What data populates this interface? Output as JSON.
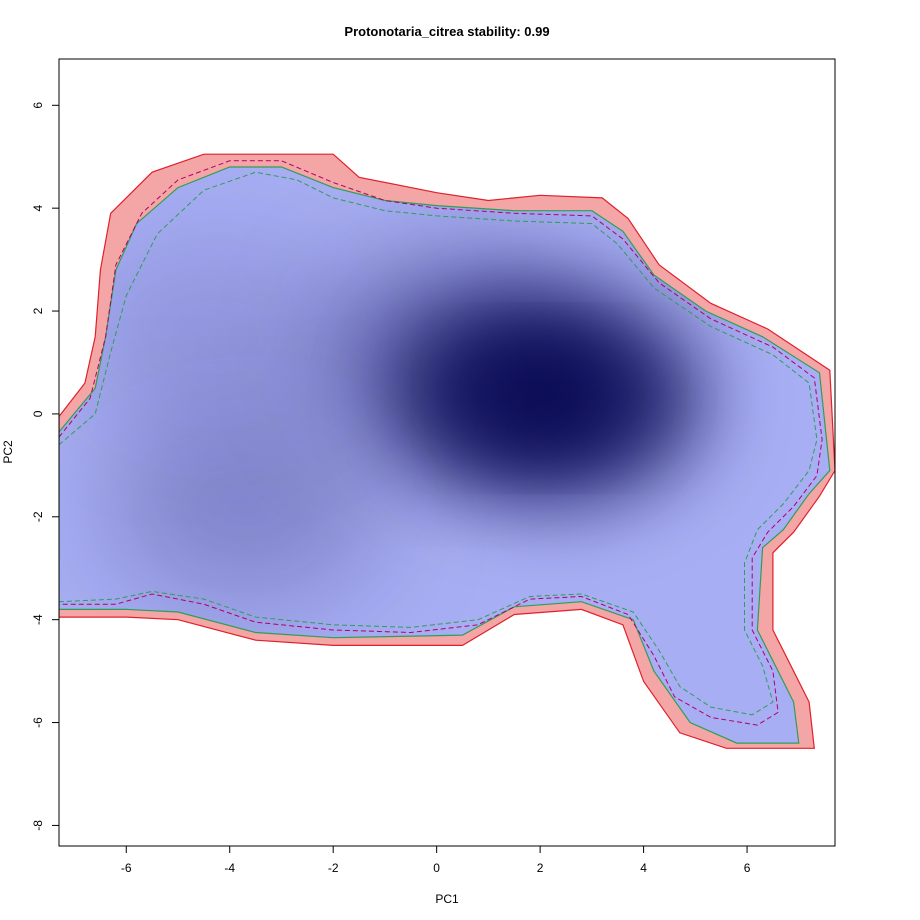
{
  "chart_data": {
    "type": "heatmap",
    "title": "Protonotaria_citrea stability: 0.99",
    "xlabel": "PC1",
    "ylabel": "PC2",
    "xlim": [
      -7.3,
      7.7
    ],
    "ylim": [
      -8.4,
      6.9
    ],
    "x_ticks": [
      -6,
      -4,
      -2,
      0,
      2,
      4,
      6
    ],
    "y_ticks": [
      -8,
      -6,
      -4,
      -2,
      0,
      2,
      4,
      6
    ],
    "x_tick_labels": [
      "-6",
      "-4",
      "-2",
      "0",
      "2",
      "4",
      "6"
    ],
    "y_tick_labels": [
      "-8",
      "-6",
      "-4",
      "-2",
      "0",
      "2",
      "4",
      "6"
    ],
    "density_peaks": [
      {
        "x": 2.2,
        "y": 0.3,
        "intensity": 1.0
      },
      {
        "x": 0.6,
        "y": 1.1,
        "intensity": 0.6
      },
      {
        "x": -3.7,
        "y": -1.8,
        "intensity": 0.32
      },
      {
        "x": -4.2,
        "y": 1.5,
        "intensity": 0.2
      }
    ],
    "outer_boundary": [
      [
        -7.3,
        -0.05
      ],
      [
        -6.8,
        0.6
      ],
      [
        -6.6,
        1.5
      ],
      [
        -6.5,
        2.8
      ],
      [
        -6.3,
        3.9
      ],
      [
        -5.5,
        4.7
      ],
      [
        -4.5,
        5.05
      ],
      [
        -2.0,
        5.05
      ],
      [
        -1.5,
        4.6
      ],
      [
        0.0,
        4.3
      ],
      [
        1.0,
        4.15
      ],
      [
        2.0,
        4.25
      ],
      [
        3.2,
        4.2
      ],
      [
        3.7,
        3.8
      ],
      [
        4.3,
        2.9
      ],
      [
        5.3,
        2.15
      ],
      [
        6.4,
        1.65
      ],
      [
        7.6,
        0.85
      ],
      [
        7.7,
        -1.1
      ],
      [
        7.4,
        -1.6
      ],
      [
        6.9,
        -2.3
      ],
      [
        6.5,
        -2.7
      ],
      [
        6.5,
        -4.2
      ],
      [
        6.8,
        -4.8
      ],
      [
        7.2,
        -5.6
      ],
      [
        7.3,
        -6.5
      ],
      [
        5.6,
        -6.5
      ],
      [
        4.7,
        -6.2
      ],
      [
        4.0,
        -5.2
      ],
      [
        3.6,
        -4.1
      ],
      [
        2.8,
        -3.8
      ],
      [
        1.5,
        -3.9
      ],
      [
        0.5,
        -4.5
      ],
      [
        -2.0,
        -4.5
      ],
      [
        -3.5,
        -4.4
      ],
      [
        -5.0,
        -4.0
      ],
      [
        -6.0,
        -3.95
      ],
      [
        -7.3,
        -3.95
      ]
    ],
    "inner_boundary": [
      [
        -7.3,
        -0.35
      ],
      [
        -6.6,
        0.5
      ],
      [
        -6.4,
        1.5
      ],
      [
        -6.2,
        2.8
      ],
      [
        -5.8,
        3.7
      ],
      [
        -5.0,
        4.4
      ],
      [
        -4.0,
        4.8
      ],
      [
        -3.0,
        4.8
      ],
      [
        -2.0,
        4.4
      ],
      [
        -1.0,
        4.15
      ],
      [
        0.0,
        4.05
      ],
      [
        1.5,
        3.95
      ],
      [
        3.0,
        3.95
      ],
      [
        3.6,
        3.55
      ],
      [
        4.2,
        2.7
      ],
      [
        5.2,
        2.0
      ],
      [
        6.3,
        1.5
      ],
      [
        7.4,
        0.8
      ],
      [
        7.6,
        -1.1
      ],
      [
        7.2,
        -1.55
      ],
      [
        6.7,
        -2.25
      ],
      [
        6.3,
        -2.6
      ],
      [
        6.2,
        -4.2
      ],
      [
        6.5,
        -4.8
      ],
      [
        6.9,
        -5.6
      ],
      [
        7.0,
        -6.4
      ],
      [
        5.8,
        -6.4
      ],
      [
        4.9,
        -6.0
      ],
      [
        4.2,
        -5.0
      ],
      [
        3.8,
        -4.0
      ],
      [
        2.8,
        -3.65
      ],
      [
        1.5,
        -3.75
      ],
      [
        0.5,
        -4.3
      ],
      [
        -2.0,
        -4.35
      ],
      [
        -3.5,
        -4.25
      ],
      [
        -5.0,
        -3.85
      ],
      [
        -6.0,
        -3.8
      ],
      [
        -7.3,
        -3.8
      ]
    ],
    "contours": [
      {
        "color": "#b0006a",
        "dashed": true,
        "points": [
          [
            -7.3,
            -0.45
          ],
          [
            -6.7,
            0.3
          ],
          [
            -6.4,
            1.5
          ],
          [
            -6.2,
            2.9
          ],
          [
            -5.7,
            3.9
          ],
          [
            -5.0,
            4.55
          ],
          [
            -4.0,
            4.92
          ],
          [
            -3.0,
            4.92
          ],
          [
            -2.0,
            4.5
          ],
          [
            -1.0,
            4.15
          ],
          [
            0.0,
            4.0
          ],
          [
            1.5,
            3.9
          ],
          [
            3.0,
            3.85
          ],
          [
            3.6,
            3.4
          ],
          [
            4.3,
            2.55
          ],
          [
            5.3,
            1.85
          ],
          [
            6.5,
            1.3
          ],
          [
            7.3,
            0.7
          ],
          [
            7.45,
            -0.5
          ],
          [
            7.35,
            -1.2
          ],
          [
            6.9,
            -1.8
          ],
          [
            6.4,
            -2.3
          ],
          [
            6.1,
            -2.8
          ],
          [
            6.1,
            -4.2
          ],
          [
            6.5,
            -5.0
          ],
          [
            6.6,
            -5.8
          ],
          [
            6.2,
            -6.05
          ],
          [
            5.3,
            -5.9
          ],
          [
            4.6,
            -5.5
          ],
          [
            4.2,
            -4.7
          ],
          [
            3.7,
            -3.9
          ],
          [
            2.8,
            -3.55
          ],
          [
            1.8,
            -3.6
          ],
          [
            0.8,
            -4.1
          ],
          [
            -0.5,
            -4.25
          ],
          [
            -2.0,
            -4.2
          ],
          [
            -3.5,
            -4.05
          ],
          [
            -4.5,
            -3.7
          ],
          [
            -5.5,
            -3.5
          ],
          [
            -6.2,
            -3.7
          ],
          [
            -7.3,
            -3.7
          ]
        ]
      },
      {
        "color": "#2e9e55",
        "dashed": true,
        "points": [
          [
            -7.3,
            -0.6
          ],
          [
            -6.6,
            0.0
          ],
          [
            -6.3,
            1.2
          ],
          [
            -6.0,
            2.3
          ],
          [
            -5.4,
            3.5
          ],
          [
            -4.5,
            4.35
          ],
          [
            -3.5,
            4.7
          ],
          [
            -2.7,
            4.55
          ],
          [
            -2.0,
            4.2
          ],
          [
            -1.0,
            3.95
          ],
          [
            0.0,
            3.85
          ],
          [
            1.5,
            3.75
          ],
          [
            3.0,
            3.7
          ],
          [
            3.5,
            3.3
          ],
          [
            4.2,
            2.45
          ],
          [
            5.3,
            1.7
          ],
          [
            6.5,
            1.15
          ],
          [
            7.2,
            0.6
          ],
          [
            7.35,
            -0.5
          ],
          [
            7.2,
            -1.1
          ],
          [
            6.7,
            -1.75
          ],
          [
            6.2,
            -2.25
          ],
          [
            5.95,
            -2.9
          ],
          [
            5.95,
            -4.2
          ],
          [
            6.3,
            -4.9
          ],
          [
            6.5,
            -5.6
          ],
          [
            6.1,
            -5.85
          ],
          [
            5.3,
            -5.7
          ],
          [
            4.7,
            -5.3
          ],
          [
            4.3,
            -4.6
          ],
          [
            3.8,
            -3.85
          ],
          [
            2.8,
            -3.5
          ],
          [
            1.8,
            -3.55
          ],
          [
            0.8,
            -4.0
          ],
          [
            -0.5,
            -4.15
          ],
          [
            -2.0,
            -4.1
          ],
          [
            -3.5,
            -3.95
          ],
          [
            -4.5,
            -3.6
          ],
          [
            -5.5,
            -3.45
          ],
          [
            -6.2,
            -3.6
          ],
          [
            -7.3,
            -3.65
          ]
        ]
      }
    ],
    "colors": {
      "outer_band": "#f4a6a6",
      "outer_line": "#e0202a",
      "inner_line": "#2e9e55",
      "density_low": "#a8aef4",
      "density_high": "#05054a"
    }
  }
}
